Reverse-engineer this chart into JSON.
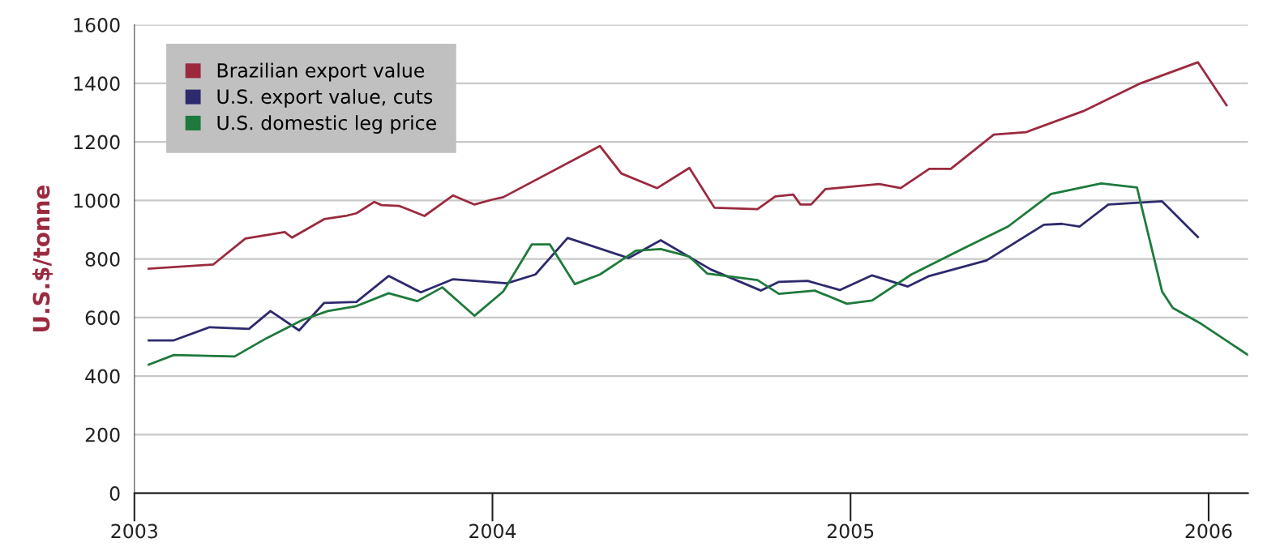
{
  "chart_data": {
    "type": "line",
    "ylabel": "U.S.$/tonne",
    "xlim": [
      2003,
      2006.11
    ],
    "ylim": [
      0,
      1600
    ],
    "xticks": [
      2003,
      2004,
      2005,
      2006
    ],
    "yticks": [
      0,
      200,
      400,
      600,
      800,
      1000,
      1200,
      1400,
      1600
    ],
    "grid": "y",
    "legend": "top left",
    "series": [
      {
        "name": "Brazilian export value",
        "color": "#9b2a3f",
        "x": [
          2003.04,
          2003.22,
          2003.31,
          2003.42,
          2003.44,
          2003.53,
          2003.59,
          2003.62,
          2003.67,
          2003.69,
          2003.74,
          2003.81,
          2003.89,
          2003.95,
          2004.0,
          2004.03,
          2004.3,
          2004.36,
          2004.46,
          2004.55,
          2004.62,
          2004.74,
          2004.79,
          2004.84,
          2004.86,
          2004.89,
          2004.93,
          2005.08,
          2005.14,
          2005.22,
          2005.28,
          2005.4,
          2005.49,
          2005.65,
          2005.81,
          2005.97,
          2006.05
        ],
        "values": [
          767,
          781,
          870,
          892,
          873,
          936,
          947,
          956,
          995,
          984,
          981,
          947,
          1017,
          986,
          1003,
          1011,
          1186,
          1092,
          1042,
          1111,
          975,
          970,
          1014,
          1020,
          986,
          986,
          1039,
          1056,
          1042,
          1108,
          1108,
          1225,
          1233,
          1305,
          1400,
          1472,
          1325
        ]
      },
      {
        "name": "U.S. export value, cuts",
        "color": "#2e2a6e",
        "x": [
          2003.04,
          2003.11,
          2003.21,
          2003.32,
          2003.38,
          2003.46,
          2003.53,
          2003.62,
          2003.71,
          2003.8,
          2003.89,
          2004.04,
          2004.12,
          2004.21,
          2004.38,
          2004.47,
          2004.61,
          2004.75,
          2004.8,
          2004.88,
          2004.97,
          2005.06,
          2005.16,
          2005.22,
          2005.38,
          2005.54,
          2005.59,
          2005.64,
          2005.72,
          2005.87,
          2005.97
        ],
        "values": [
          522,
          522,
          567,
          561,
          622,
          556,
          650,
          653,
          742,
          686,
          731,
          717,
          747,
          872,
          803,
          864,
          764,
          692,
          722,
          725,
          694,
          744,
          706,
          742,
          795,
          917,
          920,
          911,
          986,
          997,
          875
        ]
      },
      {
        "name": "U.S. domestic leg price",
        "color": "#1e7a3c",
        "x": [
          2003.04,
          2003.11,
          2003.28,
          2003.37,
          2003.47,
          2003.54,
          2003.62,
          2003.71,
          2003.79,
          2003.86,
          2003.95,
          2004.03,
          2004.11,
          2004.16,
          2004.23,
          2004.3,
          2004.4,
          2004.47,
          2004.55,
          2004.6,
          2004.74,
          2004.8,
          2004.9,
          2004.99,
          2005.06,
          2005.17,
          2005.31,
          2005.44,
          2005.56,
          2005.7,
          2005.8,
          2005.87,
          2005.9,
          2005.98,
          2006.11
        ],
        "values": [
          439,
          472,
          467,
          530,
          592,
          622,
          639,
          683,
          656,
          703,
          606,
          689,
          850,
          850,
          714,
          747,
          828,
          834,
          808,
          750,
          728,
          681,
          692,
          647,
          658,
          747,
          833,
          911,
          1022,
          1058,
          1044,
          689,
          633,
          578,
          472
        ]
      }
    ]
  }
}
